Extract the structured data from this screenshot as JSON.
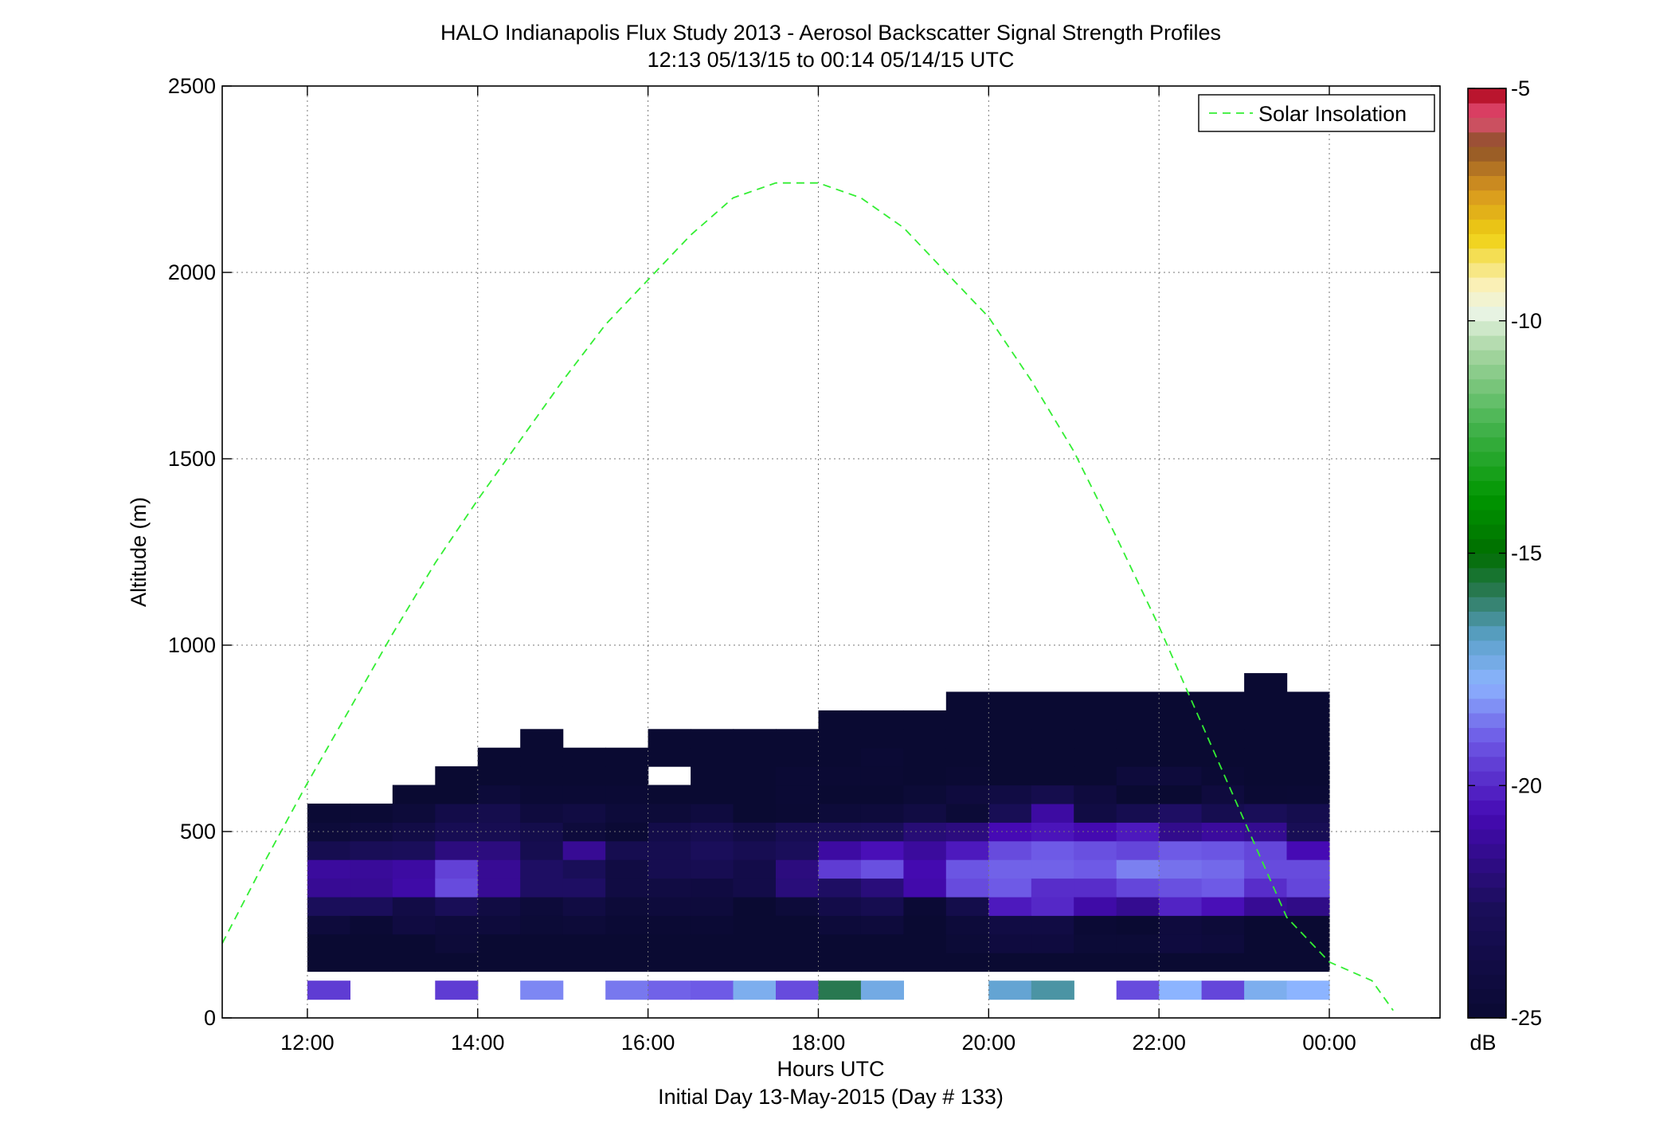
{
  "chart_data": {
    "type": "heatmap",
    "title": "HALO Indianapolis Flux Study 2013 - Aerosol Backscatter Signal Strength Profiles",
    "subtitle": "12:13 05/13/15 to 00:14 05/14/15  UTC",
    "xlabel": "Hours UTC",
    "xlabel2": "Initial Day 13-May-2015 (Day # 133)",
    "ylabel": "Altitude (m)",
    "xlim": [
      11,
      25.3
    ],
    "ylim": [
      0,
      2500
    ],
    "x_ticks": [
      12,
      14,
      16,
      18,
      20,
      22,
      24
    ],
    "x_tick_labels": [
      "12:00",
      "14:00",
      "16:00",
      "18:00",
      "20:00",
      "22:00",
      "00:00"
    ],
    "y_ticks": [
      0,
      500,
      1000,
      1500,
      2000,
      2500
    ],
    "y_tick_labels": [
      "0",
      "500",
      "1000",
      "1500",
      "2000",
      "2500"
    ],
    "grid": true,
    "legend": {
      "position": "top-right",
      "entries": [
        {
          "label": "Solar Insolation",
          "color": "#33ee33",
          "style": "dashed"
        }
      ]
    },
    "colorbar": {
      "range": [
        -25,
        -5
      ],
      "ticks": [
        -5,
        -10,
        -15,
        -20,
        -25
      ],
      "tick_labels": [
        "-5",
        "-10",
        "-15",
        "-20",
        "-25"
      ],
      "unit": "dB"
    },
    "time_start": 12.25,
    "time_step": 0.5,
    "altitude_bins": [
      75,
      150,
      200,
      250,
      300,
      350,
      400,
      450,
      500,
      550,
      600,
      650,
      700,
      750,
      800,
      850,
      900
    ],
    "cells_note": "null = no data",
    "columns": [
      {
        "time": 12.25,
        "values": [
          -19.6,
          -25,
          -25,
          -24.4,
          -22.6,
          -21.3,
          -21.1,
          -23.2,
          -24.5,
          -24.8,
          null,
          null,
          null,
          null,
          null,
          null,
          null
        ]
      },
      {
        "time": 12.75,
        "values": [
          null,
          -25,
          -25,
          -24.8,
          -22.6,
          -21.3,
          -21.2,
          -22.8,
          -24.2,
          -24.8,
          null,
          null,
          null,
          null,
          null,
          null,
          null
        ]
      },
      {
        "time": 13.25,
        "values": [
          null,
          -25,
          -25,
          -24.1,
          -23.8,
          -20.9,
          -21.0,
          -22.6,
          -23.8,
          -24.5,
          -25,
          null,
          null,
          null,
          null,
          null,
          null
        ]
      },
      {
        "time": 13.75,
        "values": [
          -19.6,
          -25,
          -24.6,
          -24.4,
          -22.8,
          -19.3,
          -19.5,
          -21.8,
          -23.0,
          -23.6,
          -25,
          -25,
          null,
          null,
          null,
          null,
          null
        ]
      },
      {
        "time": 14.25,
        "values": [
          null,
          -25,
          -25,
          -24.4,
          -24.0,
          -21.3,
          -21.3,
          -21.8,
          -23.1,
          -23.4,
          -24.5,
          -25,
          -25,
          null,
          null,
          null,
          null
        ]
      },
      {
        "time": 14.75,
        "values": [
          -18.4,
          -25,
          -25,
          -24.7,
          -24.5,
          -22.4,
          -22.4,
          -23.2,
          -23.5,
          -24.3,
          -24.8,
          -25,
          -25,
          -25,
          null,
          null,
          null
        ]
      },
      {
        "time": 15.25,
        "values": [
          null,
          -25,
          -25,
          -24.6,
          -24.0,
          -22.4,
          -22.7,
          -21.3,
          -24.4,
          -24.0,
          -24.8,
          -25,
          -25,
          null,
          null,
          null,
          null
        ]
      },
      {
        "time": 15.75,
        "values": [
          -18.6,
          -25,
          -25,
          -24.8,
          -24.6,
          -24.0,
          -24.0,
          -23.2,
          -24.8,
          -24.5,
          -24.8,
          -25,
          -25,
          null,
          null,
          null,
          null
        ]
      },
      {
        "time": 16.25,
        "values": [
          -18.9,
          -25,
          -25,
          -24.9,
          -24.4,
          -24.0,
          -23.2,
          -23.2,
          -23.6,
          -24.6,
          -25,
          null,
          -25,
          -25,
          null,
          null,
          null
        ]
      },
      {
        "time": 16.75,
        "values": [
          -19.0,
          -25,
          -25,
          -24.8,
          -24.4,
          -24.1,
          -23.1,
          -22.6,
          -23.2,
          -24.2,
          -25,
          -25,
          -25,
          -25,
          null,
          null,
          null
        ]
      },
      {
        "time": 17.25,
        "values": [
          -17.5,
          -25,
          -25,
          -25,
          -25,
          -23.6,
          -23.6,
          -23.1,
          -23.8,
          -25,
          -25,
          -25,
          -25,
          -25,
          null,
          null,
          null
        ]
      },
      {
        "time": 17.75,
        "values": [
          -19.3,
          -25,
          -25,
          -25,
          -24.5,
          -21.9,
          -21.8,
          -22.6,
          -23.1,
          -24.9,
          -24.8,
          -24.8,
          -25,
          -25,
          null,
          null,
          null
        ]
      },
      {
        "time": 18.25,
        "values": [
          -15.8,
          -25,
          -25,
          -24.5,
          -23.6,
          -22.4,
          -19.6,
          -21.0,
          -22.8,
          -24.5,
          -25,
          -24.9,
          -25,
          -25,
          -25,
          null,
          null
        ]
      },
      {
        "time": 18.75,
        "values": [
          -17.3,
          -25,
          -25,
          -24.4,
          -23.2,
          -21.9,
          -19.2,
          -20.5,
          -22.6,
          -24.4,
          -25,
          -24.9,
          -24.8,
          -25,
          -25,
          null,
          null
        ]
      },
      {
        "time": 19.25,
        "values": [
          null,
          -25,
          -25,
          -25,
          -24.8,
          -20.8,
          -20.7,
          -21.1,
          -22.0,
          -24.0,
          -24.7,
          -25,
          -25,
          -25,
          -25,
          null,
          null
        ]
      },
      {
        "time": 19.75,
        "values": [
          null,
          -25,
          -24.7,
          -24.5,
          -23.5,
          -19.3,
          -19.1,
          -20.3,
          -21.8,
          -24.7,
          -24.3,
          -24.9,
          -25,
          -25,
          -25,
          -25,
          null
        ]
      },
      {
        "time": 20.25,
        "values": [
          -17.0,
          -25,
          -24.2,
          -23.9,
          -20.3,
          -19.0,
          -18.9,
          -19.3,
          -20.6,
          -22.9,
          -23.9,
          -25,
          -25,
          -25,
          -25,
          -25,
          null
        ]
      },
      {
        "time": 20.75,
        "values": [
          -16.5,
          -25,
          -24.2,
          -23.9,
          -20.0,
          -19.9,
          -18.9,
          -19.0,
          -20.4,
          -21.0,
          -23.4,
          -25,
          -25,
          -25,
          -25,
          -25,
          null
        ]
      },
      {
        "time": 21.25,
        "values": [
          null,
          -25,
          -24.7,
          -24.8,
          -20.9,
          -19.9,
          -19.0,
          -19.2,
          -20.7,
          -23.9,
          -24.3,
          -25,
          -25,
          -25,
          -25,
          -25,
          null
        ]
      },
      {
        "time": 21.75,
        "values": [
          -19.3,
          -25,
          -24.7,
          -25,
          -21.4,
          -19.4,
          -18.5,
          -19.4,
          -20.3,
          -23.2,
          -25,
          -24.4,
          -25,
          -25,
          -25,
          -25,
          null
        ]
      },
      {
        "time": 22.25,
        "values": [
          -17.8,
          -25,
          -24.2,
          -24.3,
          -20.1,
          -19.2,
          -18.7,
          -19.0,
          -21.5,
          -22.4,
          -25,
          -24.4,
          -25,
          -25,
          -25,
          -25,
          null
        ]
      },
      {
        "time": 22.75,
        "values": [
          -19.4,
          -25,
          -24.4,
          -24.6,
          -20.5,
          -19.0,
          -18.8,
          -19.1,
          -21.1,
          -23.2,
          -24.3,
          -24.8,
          -25,
          -25,
          -25,
          -25,
          null
        ]
      },
      {
        "time": 23.25,
        "values": [
          -17.5,
          -25,
          -25,
          -25,
          -21.3,
          -19.9,
          -19.3,
          -19.4,
          -21.4,
          -22.7,
          -24.9,
          -25,
          -25,
          -25,
          -25,
          -25,
          -25
        ]
      },
      {
        "time": 23.75,
        "values": [
          -17.8,
          -25,
          -25,
          -25,
          -21.6,
          -19.4,
          -19.3,
          -20.6,
          -22.9,
          -23.3,
          -24.8,
          -25,
          -25,
          -25,
          -25,
          -25,
          null
        ]
      }
    ],
    "solar_insolation": {
      "x": [
        11.0,
        11.5,
        12.0,
        12.5,
        13.0,
        13.5,
        14.0,
        14.5,
        15.0,
        15.5,
        16.0,
        16.5,
        17.0,
        17.5,
        18.0,
        18.5,
        19.0,
        19.5,
        20.0,
        20.5,
        21.0,
        21.5,
        22.0,
        22.5,
        23.0,
        23.5,
        24.0,
        24.5,
        24.75
      ],
      "y": [
        200,
        420,
        630,
        830,
        1030,
        1220,
        1390,
        1550,
        1710,
        1860,
        1980,
        2100,
        2200,
        2240,
        2240,
        2200,
        2120,
        2000,
        1880,
        1710,
        1520,
        1290,
        1050,
        790,
        530,
        270,
        150,
        100,
        20
      ]
    }
  }
}
